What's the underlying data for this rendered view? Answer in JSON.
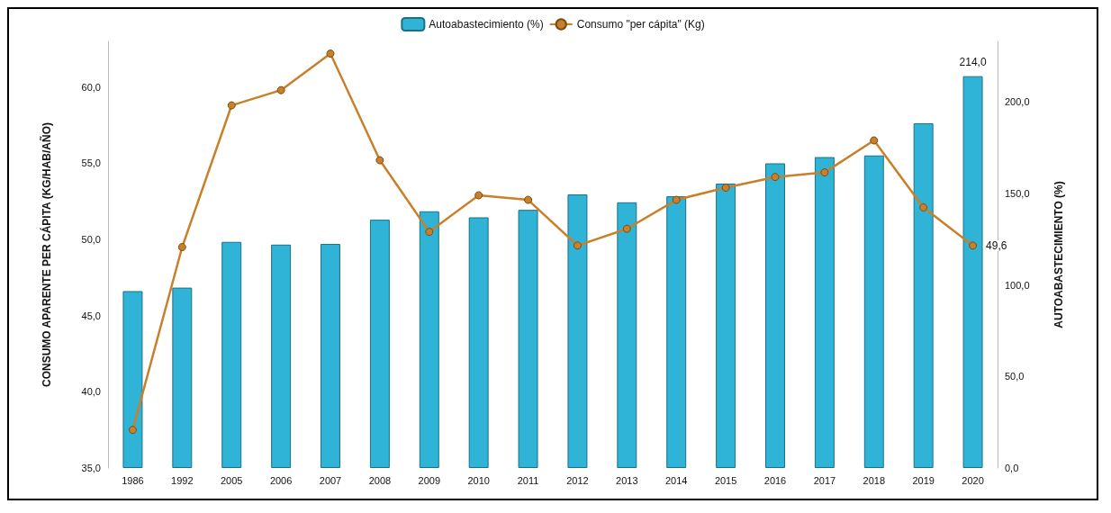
{
  "chart_data": {
    "type": "bar",
    "ylabel": "CONSUMO APARENTE PER CÁPITA (KG/HAB/AÑO)",
    "y2label": "AUTOABASTECIMIENTO (%)",
    "categories": [
      "1986",
      "1992",
      "2005",
      "2006",
      "2007",
      "2008",
      "2009",
      "2010",
      "2011",
      "2012",
      "2013",
      "2014",
      "2015",
      "2016",
      "2017",
      "2018",
      "2019",
      "2020"
    ],
    "series": [
      {
        "name": "Autoabastecimiento (%)",
        "axis": "y2",
        "color": "#2fb4d8",
        "values": [
          96.6,
          98.5,
          123.5,
          122,
          122.4,
          135.6,
          140.2,
          136.9,
          141,
          149.4,
          145.1,
          148.4,
          155.3,
          166.4,
          169.8,
          170.7,
          188.3,
          214
        ],
        "value_labels": [
          null,
          null,
          null,
          null,
          null,
          null,
          null,
          null,
          null,
          null,
          null,
          null,
          null,
          null,
          null,
          null,
          null,
          "214,0"
        ]
      },
      {
        "name": "Consumo \"per cápita\" (Kg)",
        "type": "line",
        "color": "#c8802a",
        "marker": "circle",
        "values": [
          37.5,
          49.5,
          58.8,
          59.8,
          62.2,
          55.2,
          50.5,
          52.9,
          52.6,
          49.6,
          50.7,
          52.6,
          53.4,
          54.1,
          54.4,
          56.5,
          52.1,
          49.6
        ],
        "value_labels": [
          null,
          null,
          null,
          null,
          null,
          null,
          null,
          null,
          null,
          null,
          null,
          null,
          null,
          null,
          null,
          null,
          null,
          "49,6"
        ]
      }
    ],
    "ylim": [
      35,
      63
    ],
    "yticks": [
      {
        "value": 35,
        "label": "35,0"
      },
      {
        "value": 40,
        "label": "40,0"
      },
      {
        "value": 45,
        "label": "45,0"
      },
      {
        "value": 50,
        "label": "50,0"
      },
      {
        "value": 55,
        "label": "55,0"
      },
      {
        "value": 60,
        "label": "60,0"
      }
    ],
    "y2lim": [
      0,
      233
    ],
    "y2ticks": [
      {
        "value": 0,
        "label": "0,0"
      },
      {
        "value": 50,
        "label": "50,0"
      },
      {
        "value": 100,
        "label": "100,0"
      },
      {
        "value": 150,
        "label": "150,0"
      },
      {
        "value": 200,
        "label": "200,0"
      }
    ],
    "legend": "top",
    "grid": false
  }
}
